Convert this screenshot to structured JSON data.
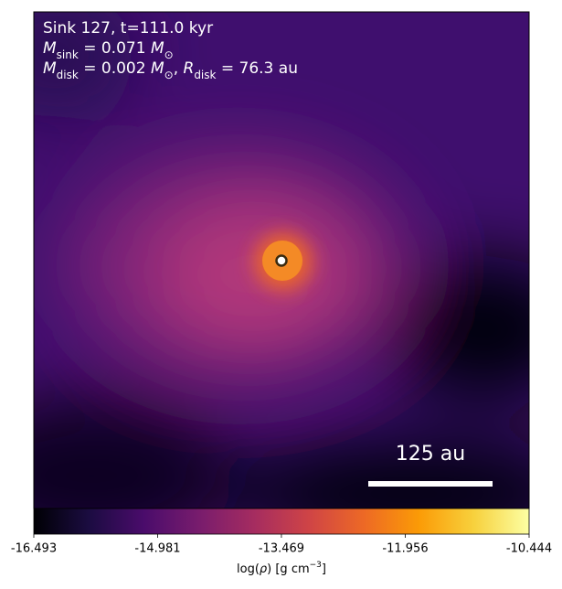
{
  "chart_data": {
    "type": "image",
    "annotations": [
      [
        "Sink 127, t=111.0 kyr"
      ],
      [
        "M",
        "sink",
        " = 0.071 ",
        "M",
        "⊙"
      ],
      [
        "M",
        "disk",
        " = 0.002 ",
        "M",
        "⊙",
        ", ",
        "R",
        "disk",
        " = 76.3 au"
      ]
    ],
    "scale_bar_label": "125 au",
    "colormap": "inferno",
    "colorbar_label": [
      "log(",
      "ρ",
      ") [g cm",
      "−3",
      "]"
    ],
    "clim": [
      -16.493,
      -10.444
    ],
    "cticks": [
      -16.493,
      -14.981,
      -13.469,
      -11.956,
      -10.444
    ]
  }
}
